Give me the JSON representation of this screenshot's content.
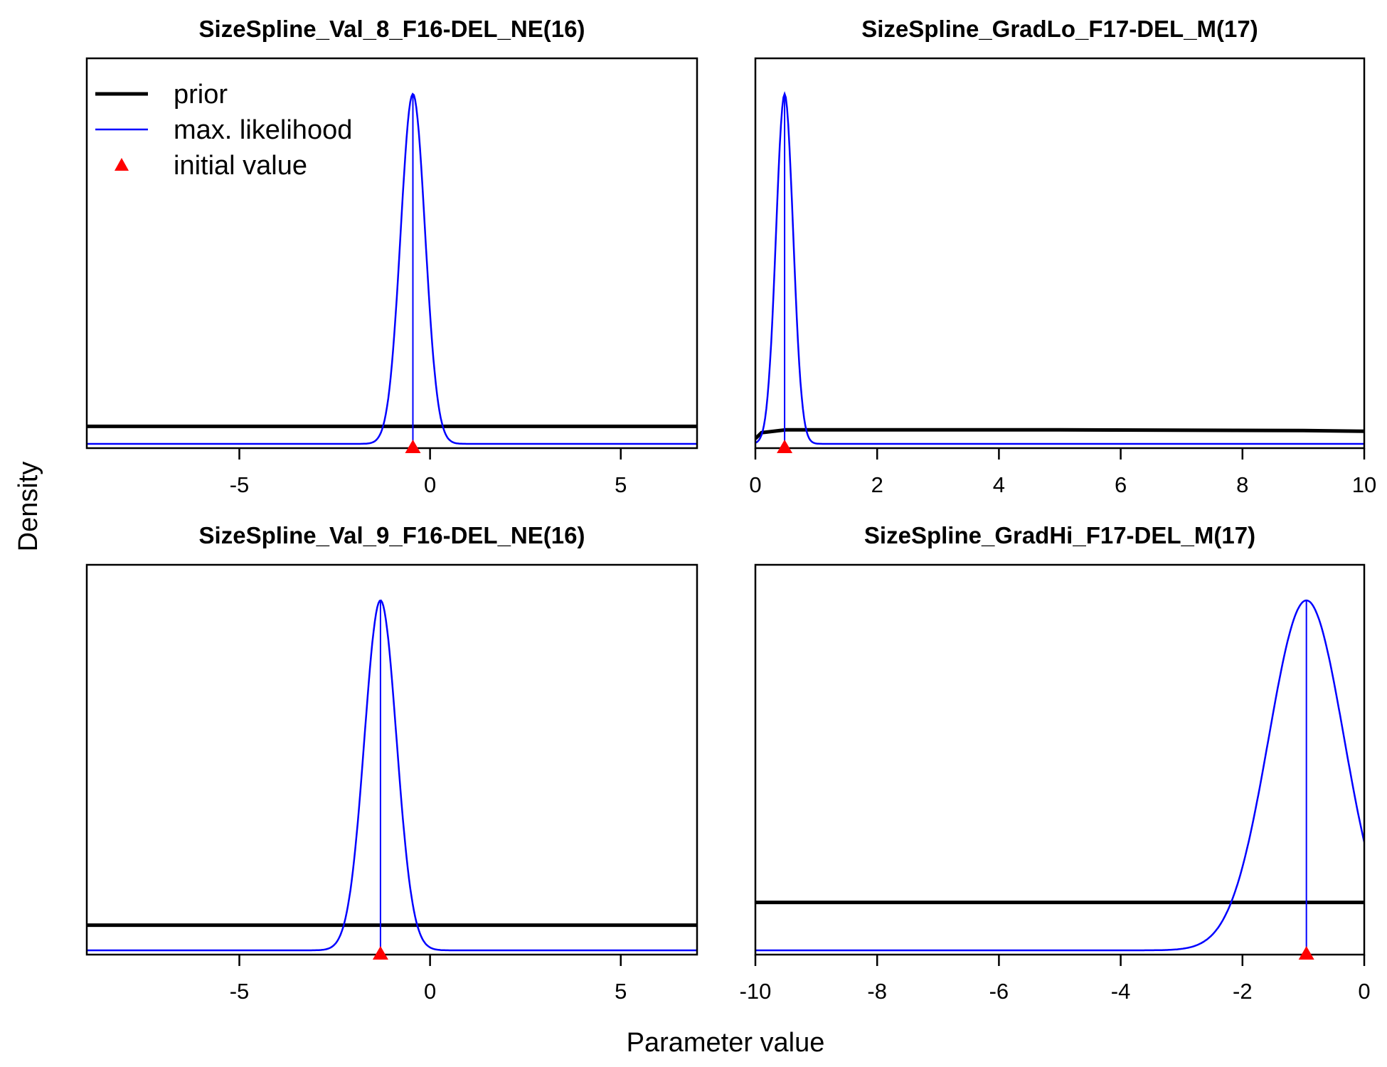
{
  "figure": {
    "xlabel": "Parameter value",
    "ylabel": "Density",
    "colors": {
      "prior": "#000000",
      "max_likelihood": "#0000ff",
      "initial": "#ff0000"
    }
  },
  "legend": {
    "placement": "top-left of first panel",
    "items": [
      {
        "key": "prior",
        "label": "prior",
        "symbol": "thick-line"
      },
      {
        "key": "max_likelihood",
        "label": "max. likelihood",
        "symbol": "thin-line"
      },
      {
        "key": "initial",
        "label": "initial value",
        "symbol": "triangle"
      }
    ]
  },
  "chart_data": [
    {
      "type": "line",
      "title": "SizeSpline_Val_8_F16-DEL_NE(16)",
      "xlim": [
        -9,
        7
      ],
      "xticks": [
        -5,
        0,
        5
      ],
      "tick_labels": [
        "-5",
        "0",
        "5"
      ],
      "ylim": [
        0,
        1
      ],
      "series": [
        {
          "name": "prior",
          "kind": "flat",
          "level": 0.05
        },
        {
          "name": "max. likelihood",
          "kind": "normal",
          "mean": -0.45,
          "sd": 0.32,
          "peak": 1.0,
          "mode_line": true
        }
      ],
      "initial_value": -0.45
    },
    {
      "type": "line",
      "title": "SizeSpline_GradLo_F17-DEL_M(17)",
      "xlim": [
        0,
        10
      ],
      "xticks": [
        0,
        2,
        4,
        6,
        8,
        10
      ],
      "tick_labels": [
        "0",
        "2",
        "4",
        "6",
        "8",
        "10"
      ],
      "ylim": [
        0,
        1
      ],
      "series": [
        {
          "name": "prior",
          "kind": "polyline",
          "x": [
            0,
            0.1,
            0.5,
            2,
            5,
            9,
            10
          ],
          "y": [
            0.015,
            0.032,
            0.04,
            0.04,
            0.04,
            0.038,
            0.036
          ]
        },
        {
          "name": "max. likelihood",
          "kind": "normal",
          "mean": 0.48,
          "sd": 0.14,
          "peak": 1.0,
          "mode_line": true
        }
      ],
      "initial_value": 0.48
    },
    {
      "type": "line",
      "title": "SizeSpline_Val_9_F16-DEL_NE(16)",
      "xlim": [
        -9,
        7
      ],
      "xticks": [
        -5,
        0,
        5
      ],
      "tick_labels": [
        "-5",
        "0",
        "5"
      ],
      "ylim": [
        0,
        1
      ],
      "series": [
        {
          "name": "prior",
          "kind": "flat",
          "level": 0.072
        },
        {
          "name": "max. likelihood",
          "kind": "normal",
          "mean": -1.3,
          "sd": 0.42,
          "peak": 1.0,
          "mode_line": true
        }
      ],
      "initial_value": -1.3
    },
    {
      "type": "line",
      "title": "SizeSpline_GradHi_F17-DEL_M(17)",
      "xlim": [
        -10,
        0
      ],
      "xticks": [
        -10,
        -8,
        -6,
        -4,
        -2,
        0
      ],
      "tick_labels": [
        "-10",
        "-8",
        "-6",
        "-4",
        "-2",
        "0"
      ],
      "ylim": [
        0,
        1
      ],
      "series": [
        {
          "name": "prior",
          "kind": "flat",
          "level": 0.137
        },
        {
          "name": "max. likelihood",
          "kind": "normal",
          "mean": -0.95,
          "sd": 0.62,
          "peak": 1.0,
          "mode_line": true
        }
      ],
      "initial_value": -0.95
    }
  ]
}
